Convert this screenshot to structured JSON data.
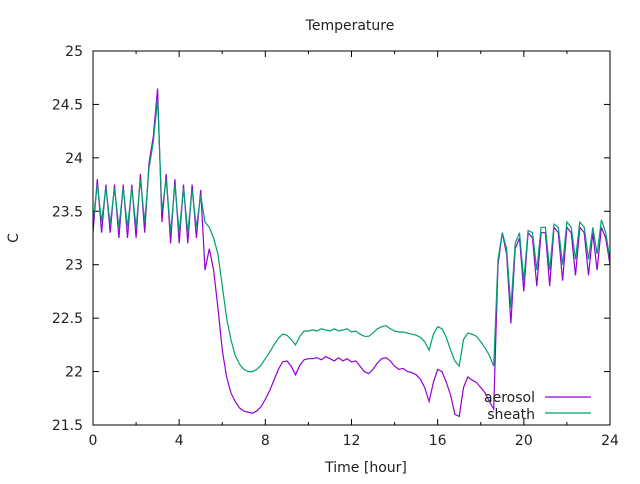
{
  "chart_data": {
    "type": "line",
    "title": "Temperature",
    "xlabel": "Time [hour]",
    "ylabel": "C",
    "xlim": [
      0,
      24
    ],
    "ylim": [
      21.5,
      25
    ],
    "xticks": [
      "0",
      "4",
      "8",
      "12",
      "16",
      "20",
      "24"
    ],
    "yticks": [
      "21.5",
      "22",
      "22.5",
      "23",
      "23.5",
      "24",
      "24.5",
      "25"
    ],
    "legend_position": "bottom-right",
    "x_step_hours": 0.2,
    "series": [
      {
        "name": "aerosol",
        "color": "#9400d3",
        "values": [
          23.3,
          23.8,
          23.3,
          23.75,
          23.3,
          23.75,
          23.25,
          23.75,
          23.25,
          23.75,
          23.25,
          23.85,
          23.3,
          23.95,
          24.2,
          24.65,
          23.4,
          23.85,
          23.2,
          23.8,
          23.2,
          23.75,
          23.2,
          23.75,
          23.25,
          23.7,
          22.95,
          23.15,
          22.95,
          22.6,
          22.2,
          21.95,
          21.8,
          21.72,
          21.66,
          21.63,
          21.62,
          21.61,
          21.63,
          21.67,
          21.74,
          21.82,
          21.92,
          22.02,
          22.09,
          22.1,
          22.05,
          21.97,
          22.06,
          22.11,
          22.12,
          22.12,
          22.13,
          22.11,
          22.14,
          22.12,
          22.1,
          22.13,
          22.1,
          22.12,
          22.09,
          22.1,
          22.05,
          22.0,
          21.98,
          22.02,
          22.08,
          22.12,
          22.13,
          22.1,
          22.05,
          22.02,
          22.03,
          22.0,
          21.99,
          21.97,
          21.93,
          21.85,
          21.72,
          21.9,
          22.02,
          22.0,
          21.9,
          21.78,
          21.6,
          21.58,
          21.85,
          21.95,
          21.92,
          21.9,
          21.85,
          21.8,
          21.72,
          21.65,
          23.0,
          23.3,
          23.1,
          22.45,
          23.15,
          23.25,
          22.75,
          23.3,
          23.25,
          22.8,
          23.3,
          23.3,
          22.8,
          23.35,
          23.3,
          22.85,
          23.35,
          23.3,
          22.9,
          23.35,
          23.3,
          22.9,
          23.3,
          22.95,
          23.35,
          23.25,
          23.0
        ]
      },
      {
        "name": "sheath",
        "color": "#009e73",
        "values": [
          23.4,
          23.75,
          23.4,
          23.72,
          23.38,
          23.72,
          23.35,
          23.72,
          23.35,
          23.72,
          23.35,
          23.8,
          23.4,
          23.9,
          24.15,
          24.55,
          23.5,
          23.8,
          23.3,
          23.75,
          23.3,
          23.72,
          23.3,
          23.7,
          23.35,
          23.65,
          23.4,
          23.35,
          23.25,
          23.1,
          22.8,
          22.5,
          22.3,
          22.15,
          22.07,
          22.02,
          22.0,
          22.0,
          22.02,
          22.06,
          22.12,
          22.18,
          22.25,
          22.31,
          22.35,
          22.34,
          22.3,
          22.25,
          22.33,
          22.38,
          22.38,
          22.39,
          22.38,
          22.4,
          22.39,
          22.38,
          22.4,
          22.38,
          22.39,
          22.4,
          22.37,
          22.38,
          22.35,
          22.33,
          22.33,
          22.36,
          22.4,
          22.42,
          22.43,
          22.4,
          22.38,
          22.37,
          22.37,
          22.36,
          22.35,
          22.34,
          22.32,
          22.28,
          22.2,
          22.35,
          22.42,
          22.4,
          22.32,
          22.2,
          22.1,
          22.05,
          22.3,
          22.36,
          22.35,
          22.33,
          22.28,
          22.22,
          22.15,
          22.05,
          23.05,
          23.3,
          23.15,
          22.6,
          23.2,
          23.3,
          22.85,
          23.32,
          23.3,
          22.95,
          23.35,
          23.35,
          22.95,
          23.38,
          23.35,
          23.0,
          23.4,
          23.35,
          23.05,
          23.4,
          23.35,
          23.05,
          23.35,
          23.1,
          23.42,
          23.3,
          23.05
        ]
      }
    ]
  }
}
